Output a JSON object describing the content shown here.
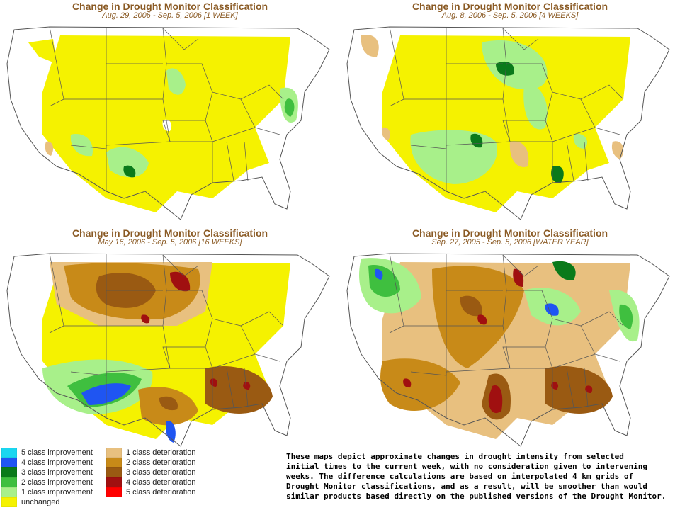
{
  "colors": {
    "imp5": "#1ad6f0",
    "imp4": "#1f55f2",
    "imp3": "#0a7a1a",
    "imp2": "#3fbf3f",
    "imp1": "#a8f08a",
    "unchanged": "#f5f200",
    "det1": "#e8c07f",
    "det2": "#c88a18",
    "det3": "#9a5a12",
    "det4": "#a01010",
    "det5": "#ff0000",
    "border": "#555555"
  },
  "panels": [
    {
      "title": "Change in Drought Monitor Classification",
      "subtitle": "Aug. 29, 2006 - Sep. 5, 2006 [1 WEEK]",
      "icon": "us-map"
    },
    {
      "title": "Change in Drought Monitor Classification",
      "subtitle": "Aug. 8, 2006 - Sep. 5, 2006 [4 WEEKS]",
      "icon": "us-map"
    },
    {
      "title": "Change in Drought Monitor Classification",
      "subtitle": "May 16, 2006 - Sep. 5, 2006 [16 WEEKS]",
      "icon": "us-map"
    },
    {
      "title": "Change in Drought Monitor Classification",
      "subtitle": "Sep. 27, 2005 - Sep. 5, 2006 [WATER YEAR]",
      "icon": "us-map"
    }
  ],
  "legend": {
    "improvement": [
      {
        "label": "5 class improvement",
        "color": "#1ad6f0"
      },
      {
        "label": "4 class improvement",
        "color": "#1f55f2"
      },
      {
        "label": "3 class improvement",
        "color": "#0a7a1a"
      },
      {
        "label": "2 class improvement",
        "color": "#3fbf3f"
      },
      {
        "label": "1 class improvement",
        "color": "#a8f08a"
      },
      {
        "label": "unchanged",
        "color": "#f5f200"
      }
    ],
    "deterioration": [
      {
        "label": "1 class deterioration",
        "color": "#e8c07f"
      },
      {
        "label": "2 class deterioration",
        "color": "#c88a18"
      },
      {
        "label": "3 class deterioration",
        "color": "#9a5a12"
      },
      {
        "label": "4 class deterioration",
        "color": "#a01010"
      },
      {
        "label": "5 class deterioration",
        "color": "#ff0000"
      }
    ]
  },
  "note": "These maps depict approximate changes in drought intensity from selected\ninitial times to the current week, with no consideration given to intervening\nweeks. The difference calculations are based on interpolated 4 km grids of\nDrought Monitor classifications, and as a result, will be smoother than would\nsimilar products based directly on the published versions of the Drought Monitor."
}
